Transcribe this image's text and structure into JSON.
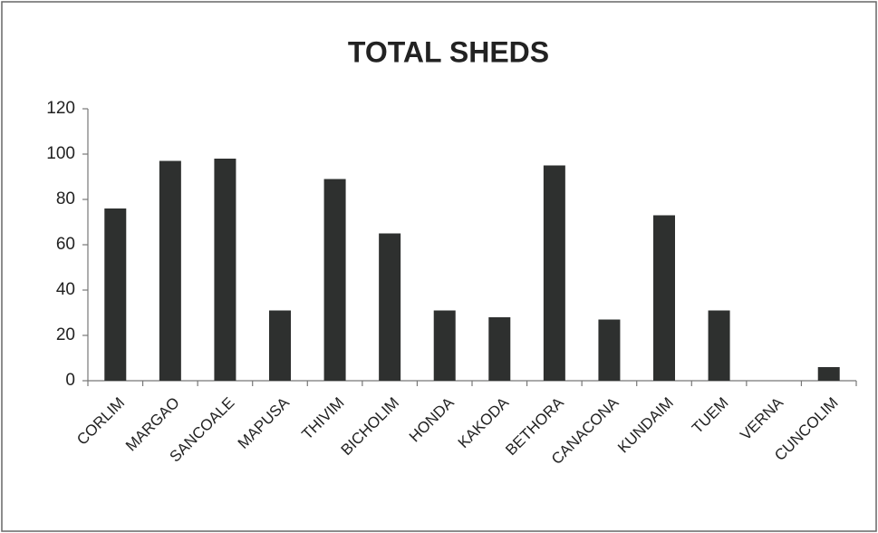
{
  "chart_data": {
    "type": "bar",
    "title": "TOTAL SHEDS",
    "categories": [
      "CORLIM",
      "MARGAO",
      "SANCOALE",
      "MAPUSA",
      "THIVIM",
      "BICHOLIM",
      "HONDA",
      "KAKODA",
      "BETHORA",
      "CANACONA",
      "KUNDAIM",
      "TUEM",
      "VERNA",
      "CUNCOLIM"
    ],
    "values": [
      76,
      97,
      98,
      31,
      89,
      65,
      31,
      28,
      95,
      27,
      73,
      31,
      0,
      6
    ],
    "color": "#2e302f",
    "ylim": [
      0,
      120
    ],
    "yticks": [
      0,
      20,
      40,
      60,
      80,
      100,
      120
    ],
    "grid": false
  }
}
